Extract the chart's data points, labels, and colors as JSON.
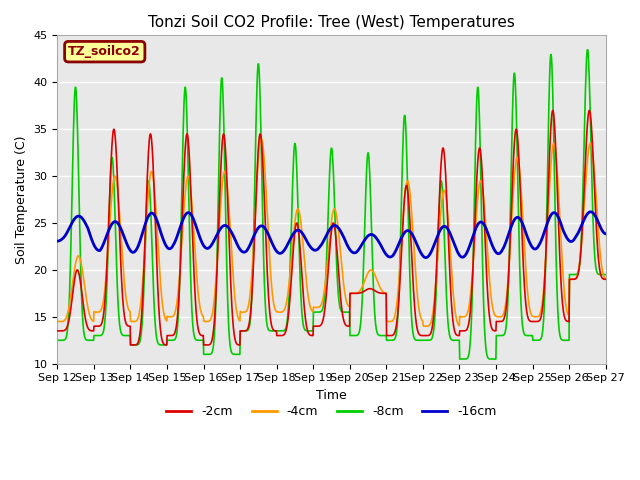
{
  "title": "Tonzi Soil CO2 Profile: Tree (West) Temperatures",
  "ylabel": "Soil Temperature (C)",
  "xlabel": "Time",
  "ylim": [
    10,
    45
  ],
  "background_color": "#ffffff",
  "plot_bg_color": "#e8e8e8",
  "legend_box_label": "TZ_soilco2",
  "legend_box_color": "#8b0000",
  "legend_box_bg": "#ffff99",
  "series": {
    "-2cm": {
      "color": "#dd0000",
      "linewidth": 1.2
    },
    "-4cm": {
      "color": "#ff9900",
      "linewidth": 1.2
    },
    "-8cm": {
      "color": "#00cc00",
      "linewidth": 1.2
    },
    "-16cm": {
      "color": "#0000cc",
      "linewidth": 2.0
    }
  },
  "xtick_labels": [
    "Sep 12",
    "Sep 13",
    "Sep 14",
    "Sep 15",
    "Sep 16",
    "Sep 17",
    "Sep 18",
    "Sep 19",
    "Sep 20",
    "Sep 21",
    "Sep 22",
    "Sep 23",
    "Sep 24",
    "Sep 25",
    "Sep 26",
    "Sep 27"
  ],
  "ytick_labels": [
    10,
    15,
    20,
    25,
    30,
    35,
    40,
    45
  ],
  "grid_color": "#ffffff",
  "title_fontsize": 11,
  "axis_fontsize": 9,
  "tick_fontsize": 8,
  "n_days": 15,
  "n_per_day": 96,
  "green_peaks": [
    39.5,
    32.0,
    29.5,
    39.5,
    40.5,
    42.0,
    33.5,
    33.0,
    32.5,
    36.5,
    29.5,
    39.5,
    41.0,
    43.0,
    43.5
  ],
  "green_troughs": [
    12.5,
    13.0,
    12.0,
    12.5,
    11.0,
    13.5,
    13.5,
    15.5,
    13.0,
    12.5,
    12.5,
    10.5,
    13.0,
    12.5,
    19.5
  ],
  "orange_peaks": [
    21.5,
    30.0,
    30.5,
    30.0,
    30.5,
    34.0,
    26.5,
    26.5,
    20.0,
    29.5,
    28.5,
    29.5,
    32.0,
    33.5,
    33.5
  ],
  "orange_troughs": [
    14.5,
    15.5,
    14.5,
    15.0,
    14.5,
    15.5,
    15.5,
    16.0,
    17.5,
    14.5,
    14.0,
    15.0,
    15.0,
    15.0,
    19.0
  ],
  "red_peaks": [
    20.0,
    35.0,
    34.5,
    34.5,
    34.5,
    34.5,
    25.0,
    25.0,
    18.0,
    29.0,
    33.0,
    33.0,
    35.0,
    37.0,
    37.0
  ],
  "red_troughs": [
    13.5,
    14.0,
    12.0,
    13.0,
    12.0,
    13.5,
    13.0,
    14.0,
    17.5,
    13.0,
    13.0,
    13.5,
    14.5,
    14.5,
    19.0
  ],
  "blue_peaks": [
    26.0,
    25.5,
    26.5,
    26.5,
    25.0,
    25.0,
    24.5,
    25.0,
    24.0,
    24.5,
    25.0,
    25.5,
    26.0,
    26.5,
    26.5
  ],
  "blue_troughs": [
    23.0,
    21.5,
    21.5,
    22.0,
    22.0,
    21.5,
    21.5,
    22.0,
    21.5,
    21.0,
    21.0,
    21.0,
    21.5,
    22.0,
    23.0
  ]
}
